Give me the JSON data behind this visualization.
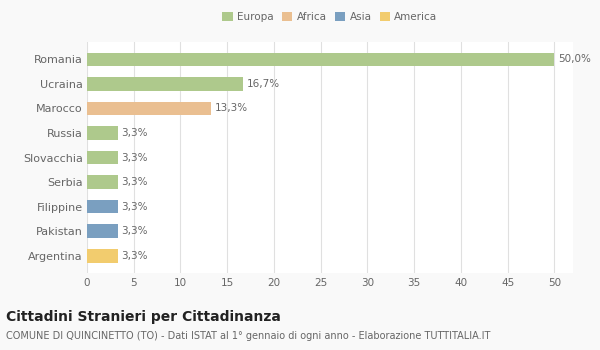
{
  "countries": [
    "Romania",
    "Ucraina",
    "Marocco",
    "Russia",
    "Slovacchia",
    "Serbia",
    "Filippine",
    "Pakistan",
    "Argentina"
  ],
  "values": [
    50.0,
    16.7,
    13.3,
    3.3,
    3.3,
    3.3,
    3.3,
    3.3,
    3.3
  ],
  "labels": [
    "50,0%",
    "16,7%",
    "13,3%",
    "3,3%",
    "3,3%",
    "3,3%",
    "3,3%",
    "3,3%",
    "3,3%"
  ],
  "colors": [
    "#aec98c",
    "#aec98c",
    "#eabf91",
    "#aec98c",
    "#aec98c",
    "#aec98c",
    "#7a9fc0",
    "#7a9fc0",
    "#f2cc6e"
  ],
  "legend_labels": [
    "Europa",
    "Africa",
    "Asia",
    "America"
  ],
  "legend_colors": [
    "#aec98c",
    "#eabf91",
    "#7a9fc0",
    "#f2cc6e"
  ],
  "xlim": [
    0,
    52
  ],
  "xticks": [
    0,
    5,
    10,
    15,
    20,
    25,
    30,
    35,
    40,
    45,
    50
  ],
  "title": "Cittadini Stranieri per Cittadinanza",
  "subtitle": "COMUNE DI QUINCINETTO (TO) - Dati ISTAT al 1° gennaio di ogni anno - Elaborazione TUTTITALIA.IT",
  "background_color": "#f9f9f9",
  "bar_background": "#ffffff",
  "grid_color": "#e0e0e0",
  "text_color": "#666666",
  "label_fontsize": 7.5,
  "tick_fontsize": 7.5,
  "country_fontsize": 8,
  "title_fontsize": 10,
  "subtitle_fontsize": 7
}
